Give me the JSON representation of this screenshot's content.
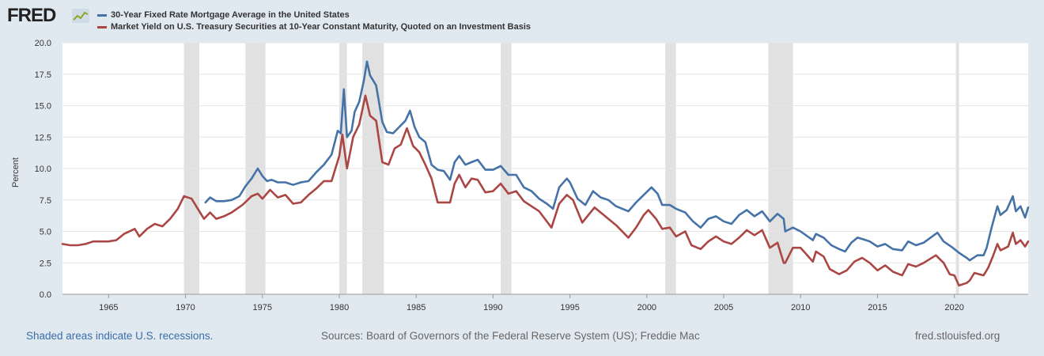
{
  "header": {
    "logo_text": "FRED",
    "logo_icon": "line-chart-icon"
  },
  "footer": {
    "note": "Shaded areas indicate U.S. recessions.",
    "sources": "Sources: Board of Governors of the Federal Reserve System (US); Freddie Mac",
    "site": "fred.stlouisfed.org"
  },
  "colors": {
    "background": "#e1e9f0",
    "plot_bg": "#ffffff",
    "grid": "#e6e6e6",
    "recession": "#e1e1e1",
    "mortgage": "#4572a7",
    "treasury": "#aa4643"
  },
  "chart_data": {
    "type": "line",
    "title": "",
    "xlabel": "",
    "ylabel": "Percent",
    "xlim": [
      1962.0,
      2024.8
    ],
    "ylim": [
      0,
      20
    ],
    "yticks": [
      0.0,
      2.5,
      5.0,
      7.5,
      10.0,
      12.5,
      15.0,
      17.5,
      20.0
    ],
    "ytick_labels": [
      "0.0",
      "2.5",
      "5.0",
      "7.5",
      "10.0",
      "12.5",
      "15.0",
      "17.5",
      "20.0"
    ],
    "xticks": [
      1965,
      1970,
      1975,
      1980,
      1985,
      1990,
      1995,
      2000,
      2005,
      2010,
      2015,
      2020
    ],
    "xtick_labels": [
      "1965",
      "1970",
      "1975",
      "1980",
      "1985",
      "1990",
      "1995",
      "2000",
      "2005",
      "2010",
      "2015",
      "2020"
    ],
    "grid": true,
    "legend_position": "top-left",
    "recessions": [
      [
        1969.9,
        1970.9
      ],
      [
        1973.9,
        1975.2
      ],
      [
        1980.0,
        1980.5
      ],
      [
        1981.5,
        1982.9
      ],
      [
        1990.5,
        1991.2
      ],
      [
        2001.2,
        2001.9
      ],
      [
        2007.9,
        2009.5
      ],
      [
        2020.1,
        2020.3
      ]
    ],
    "series": [
      {
        "name": "30-Year Fixed Rate Mortgage Average in the United States",
        "color": "#4572a7",
        "x": [
          1971.3,
          1971.6,
          1972.0,
          1972.5,
          1973.0,
          1973.5,
          1973.9,
          1974.3,
          1974.7,
          1975.0,
          1975.3,
          1975.6,
          1976.0,
          1976.5,
          1977.0,
          1977.5,
          1978.0,
          1978.5,
          1979.0,
          1979.5,
          1979.9,
          1980.1,
          1980.3,
          1980.5,
          1980.8,
          1981.0,
          1981.3,
          1981.6,
          1981.8,
          1982.0,
          1982.4,
          1982.8,
          1983.1,
          1983.5,
          1983.9,
          1984.3,
          1984.6,
          1984.9,
          1985.2,
          1985.6,
          1986.0,
          1986.4,
          1986.8,
          1987.2,
          1987.5,
          1987.8,
          1988.2,
          1988.6,
          1989.0,
          1989.5,
          1990.0,
          1990.5,
          1991.0,
          1991.5,
          1992.0,
          1992.5,
          1993.0,
          1993.5,
          1993.9,
          1994.3,
          1994.8,
          1995.0,
          1995.5,
          1996.0,
          1996.5,
          1997.0,
          1997.5,
          1998.0,
          1998.8,
          1999.3,
          1999.8,
          2000.3,
          2000.7,
          2001.0,
          2001.5,
          2001.9,
          2002.5,
          2003.0,
          2003.5,
          2004.0,
          2004.5,
          2005.0,
          2005.5,
          2006.0,
          2006.5,
          2007.0,
          2007.5,
          2008.0,
          2008.5,
          2008.9,
          2009.0,
          2009.5,
          2010.0,
          2010.8,
          2011.0,
          2011.5,
          2012.0,
          2012.5,
          2012.9,
          2013.3,
          2013.7,
          2014.0,
          2014.5,
          2015.0,
          2015.5,
          2016.0,
          2016.6,
          2017.0,
          2017.5,
          2018.0,
          2018.9,
          2019.3,
          2019.9,
          2020.3,
          2020.8,
          2021.0,
          2021.5,
          2021.9,
          2022.1,
          2022.4,
          2022.8,
          2023.0,
          2023.4,
          2023.8,
          2024.0,
          2024.3,
          2024.6,
          2024.8
        ],
        "y": [
          7.3,
          7.7,
          7.4,
          7.4,
          7.5,
          7.8,
          8.6,
          9.2,
          10.0,
          9.4,
          9.0,
          9.1,
          8.9,
          8.9,
          8.7,
          8.9,
          9.0,
          9.7,
          10.3,
          11.1,
          13.0,
          12.8,
          16.3,
          12.5,
          13.0,
          14.5,
          15.3,
          17.0,
          18.5,
          17.4,
          16.6,
          13.7,
          12.9,
          12.8,
          13.3,
          13.8,
          14.6,
          13.3,
          12.5,
          12.1,
          10.3,
          9.9,
          9.8,
          9.1,
          10.5,
          11.0,
          10.3,
          10.5,
          10.7,
          9.9,
          9.9,
          10.2,
          9.5,
          9.5,
          8.5,
          8.2,
          7.6,
          7.2,
          6.8,
          8.5,
          9.2,
          8.9,
          7.6,
          7.1,
          8.2,
          7.7,
          7.5,
          7.0,
          6.6,
          7.3,
          7.9,
          8.5,
          8.0,
          7.1,
          7.1,
          6.8,
          6.5,
          5.8,
          5.3,
          6.0,
          6.2,
          5.8,
          5.6,
          6.3,
          6.7,
          6.2,
          6.6,
          5.8,
          6.4,
          6.0,
          5.0,
          5.3,
          5.0,
          4.3,
          4.8,
          4.5,
          3.9,
          3.6,
          3.4,
          4.1,
          4.5,
          4.4,
          4.2,
          3.8,
          4.0,
          3.6,
          3.5,
          4.2,
          3.9,
          4.1,
          4.9,
          4.2,
          3.7,
          3.3,
          2.9,
          2.7,
          3.1,
          3.1,
          3.7,
          5.2,
          7.0,
          6.3,
          6.7,
          7.8,
          6.6,
          7.0,
          6.1,
          6.9
        ]
      },
      {
        "name": "Market Yield on U.S. Treasury Securities at 10-Year Constant Maturity, Quoted on an Investment Basis",
        "color": "#aa4643",
        "x": [
          1962.0,
          1962.5,
          1963.0,
          1963.5,
          1964.0,
          1964.5,
          1965.0,
          1965.5,
          1966.0,
          1966.7,
          1967.0,
          1967.5,
          1968.0,
          1968.5,
          1969.0,
          1969.5,
          1969.9,
          1970.4,
          1970.8,
          1971.2,
          1971.6,
          1972.0,
          1972.5,
          1973.0,
          1973.7,
          1974.3,
          1974.7,
          1975.0,
          1975.5,
          1976.0,
          1976.5,
          1977.0,
          1977.5,
          1978.0,
          1978.5,
          1979.0,
          1979.5,
          1980.0,
          1980.2,
          1980.5,
          1980.9,
          1981.3,
          1981.7,
          1982.0,
          1982.4,
          1982.8,
          1983.2,
          1983.6,
          1984.0,
          1984.4,
          1984.8,
          1985.2,
          1985.6,
          1986.0,
          1986.4,
          1986.8,
          1987.2,
          1987.5,
          1987.8,
          1988.2,
          1988.6,
          1989.0,
          1989.5,
          1990.0,
          1990.5,
          1991.0,
          1991.5,
          1992.0,
          1992.5,
          1993.0,
          1993.8,
          1994.3,
          1994.8,
          1995.2,
          1995.8,
          1996.2,
          1996.6,
          1997.0,
          1997.5,
          1998.0,
          1998.8,
          1999.3,
          1999.8,
          2000.1,
          2000.6,
          2001.0,
          2001.5,
          2001.9,
          2002.5,
          2002.9,
          2003.5,
          2004.0,
          2004.5,
          2005.0,
          2005.5,
          2006.0,
          2006.5,
          2007.0,
          2007.5,
          2008.0,
          2008.5,
          2008.9,
          2009.0,
          2009.5,
          2010.0,
          2010.8,
          2011.0,
          2011.5,
          2011.9,
          2012.5,
          2013.0,
          2013.5,
          2014.0,
          2014.5,
          2015.0,
          2015.5,
          2016.0,
          2016.6,
          2017.0,
          2017.5,
          2018.0,
          2018.8,
          2019.3,
          2019.7,
          2020.0,
          2020.3,
          2020.8,
          2021.0,
          2021.3,
          2021.9,
          2022.2,
          2022.5,
          2022.8,
          2023.0,
          2023.5,
          2023.8,
          2024.0,
          2024.3,
          2024.6,
          2024.8
        ],
        "y": [
          4.0,
          3.9,
          3.9,
          4.0,
          4.2,
          4.2,
          4.2,
          4.3,
          4.8,
          5.2,
          4.6,
          5.2,
          5.6,
          5.4,
          6.0,
          6.8,
          7.8,
          7.6,
          6.8,
          6.0,
          6.5,
          6.0,
          6.2,
          6.5,
          7.1,
          7.8,
          8.0,
          7.6,
          8.3,
          7.7,
          7.9,
          7.2,
          7.3,
          7.9,
          8.4,
          9.0,
          9.0,
          11.0,
          12.7,
          10.0,
          12.5,
          13.5,
          15.8,
          14.2,
          13.8,
          10.5,
          10.3,
          11.6,
          11.9,
          13.2,
          11.8,
          11.3,
          10.3,
          9.2,
          7.3,
          7.3,
          7.3,
          8.8,
          9.5,
          8.5,
          9.2,
          9.1,
          8.1,
          8.2,
          8.8,
          8.0,
          8.2,
          7.4,
          7.0,
          6.6,
          5.3,
          7.2,
          7.9,
          7.5,
          5.7,
          6.3,
          6.9,
          6.5,
          6.0,
          5.5,
          4.5,
          5.3,
          6.3,
          6.7,
          6.0,
          5.2,
          5.3,
          4.6,
          5.0,
          3.9,
          3.6,
          4.2,
          4.6,
          4.2,
          4.0,
          4.5,
          5.1,
          4.7,
          5.1,
          3.7,
          4.1,
          2.5,
          2.5,
          3.7,
          3.7,
          2.6,
          3.4,
          3.0,
          2.0,
          1.6,
          1.9,
          2.6,
          2.9,
          2.5,
          1.9,
          2.3,
          1.8,
          1.5,
          2.4,
          2.2,
          2.5,
          3.1,
          2.5,
          1.6,
          1.5,
          0.7,
          0.9,
          1.1,
          1.7,
          1.5,
          2.1,
          3.0,
          4.0,
          3.5,
          3.8,
          4.9,
          4.0,
          4.3,
          3.8,
          4.2
        ]
      }
    ]
  }
}
